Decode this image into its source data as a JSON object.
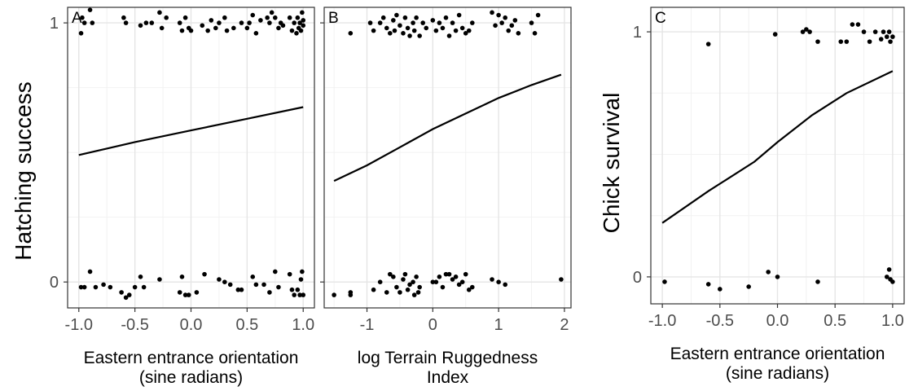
{
  "chart_data": [
    {
      "type": "scatter",
      "panel_label": "A",
      "xlabel": [
        "Eastern entrance orientation",
        "(sine radians)"
      ],
      "ylabel": "Hatching success",
      "xlim": [
        -1.1,
        1.1
      ],
      "ylim": [
        -0.1,
        1.06
      ],
      "x_ticks": [
        -1.0,
        -0.5,
        0.0,
        0.5,
        1.0
      ],
      "x_tick_labels": [
        "-1.0",
        "-0.5",
        "0.0",
        "0.5",
        "1.0"
      ],
      "y_ticks": [
        0,
        1
      ],
      "y_tick_labels": [
        "0",
        "1"
      ],
      "grid": true,
      "fit_line": {
        "x": [
          -1.0,
          -0.5,
          0.0,
          0.5,
          1.0
        ],
        "y": [
          0.49,
          0.54,
          0.585,
          0.63,
          0.675
        ]
      },
      "points": [
        {
          "x": -0.98,
          "y": 0.96
        },
        {
          "x": -0.97,
          "y": 1.02
        },
        {
          "x": -0.95,
          "y": 1.0
        },
        {
          "x": -0.9,
          "y": 1.05
        },
        {
          "x": -0.88,
          "y": 1.0
        },
        {
          "x": -0.6,
          "y": 1.02
        },
        {
          "x": -0.58,
          "y": 1.0
        },
        {
          "x": -0.45,
          "y": 0.99
        },
        {
          "x": -0.4,
          "y": 1.0
        },
        {
          "x": -0.35,
          "y": 1.0
        },
        {
          "x": -0.28,
          "y": 1.04
        },
        {
          "x": -0.26,
          "y": 0.98
        },
        {
          "x": -0.22,
          "y": 1.02
        },
        {
          "x": -0.1,
          "y": 1.0
        },
        {
          "x": -0.08,
          "y": 0.97
        },
        {
          "x": -0.05,
          "y": 1.02
        },
        {
          "x": -0.02,
          "y": 0.98
        },
        {
          "x": 0.0,
          "y": 0.97
        },
        {
          "x": 0.1,
          "y": 0.99
        },
        {
          "x": 0.15,
          "y": 0.97
        },
        {
          "x": 0.18,
          "y": 1.01
        },
        {
          "x": 0.22,
          "y": 0.98
        },
        {
          "x": 0.25,
          "y": 1.0
        },
        {
          "x": 0.3,
          "y": 1.02
        },
        {
          "x": 0.32,
          "y": 0.97
        },
        {
          "x": 0.38,
          "y": 0.98
        },
        {
          "x": 0.45,
          "y": 1.0
        },
        {
          "x": 0.5,
          "y": 0.98
        },
        {
          "x": 0.52,
          "y": 1.0
        },
        {
          "x": 0.55,
          "y": 1.03
        },
        {
          "x": 0.58,
          "y": 0.96
        },
        {
          "x": 0.62,
          "y": 1.01
        },
        {
          "x": 0.68,
          "y": 1.02
        },
        {
          "x": 0.7,
          "y": 1.0
        },
        {
          "x": 0.72,
          "y": 1.04
        },
        {
          "x": 0.75,
          "y": 1.02
        },
        {
          "x": 0.78,
          "y": 0.98
        },
        {
          "x": 0.8,
          "y": 1.0
        },
        {
          "x": 0.82,
          "y": 0.99
        },
        {
          "x": 0.88,
          "y": 1.02
        },
        {
          "x": 0.9,
          "y": 0.97
        },
        {
          "x": 0.92,
          "y": 1.0
        },
        {
          "x": 0.94,
          "y": 0.96
        },
        {
          "x": 0.95,
          "y": 1.02
        },
        {
          "x": 0.96,
          "y": 0.98
        },
        {
          "x": 0.97,
          "y": 1.0
        },
        {
          "x": 0.98,
          "y": 0.97
        },
        {
          "x": 0.99,
          "y": 1.04
        },
        {
          "x": 1.0,
          "y": 0.99
        },
        {
          "x": 1.0,
          "y": 1.01
        },
        {
          "x": -0.98,
          "y": -0.02
        },
        {
          "x": -0.95,
          "y": -0.02
        },
        {
          "x": -0.9,
          "y": 0.04
        },
        {
          "x": -0.85,
          "y": -0.02
        },
        {
          "x": -0.78,
          "y": -0.01
        },
        {
          "x": -0.72,
          "y": -0.02
        },
        {
          "x": -0.62,
          "y": -0.04
        },
        {
          "x": -0.58,
          "y": -0.06
        },
        {
          "x": -0.55,
          "y": -0.05
        },
        {
          "x": -0.5,
          "y": -0.02
        },
        {
          "x": -0.45,
          "y": 0.02
        },
        {
          "x": -0.42,
          "y": -0.02
        },
        {
          "x": -0.28,
          "y": 0.01
        },
        {
          "x": -0.1,
          "y": -0.04
        },
        {
          "x": -0.08,
          "y": 0.02
        },
        {
          "x": -0.05,
          "y": -0.05
        },
        {
          "x": -0.02,
          "y": -0.05
        },
        {
          "x": 0.05,
          "y": -0.04
        },
        {
          "x": 0.12,
          "y": 0.03
        },
        {
          "x": 0.25,
          "y": 0.01
        },
        {
          "x": 0.3,
          "y": 0.0
        },
        {
          "x": 0.35,
          "y": -0.01
        },
        {
          "x": 0.42,
          "y": -0.03
        },
        {
          "x": 0.45,
          "y": -0.03
        },
        {
          "x": 0.55,
          "y": 0.02
        },
        {
          "x": 0.58,
          "y": -0.01
        },
        {
          "x": 0.65,
          "y": -0.01
        },
        {
          "x": 0.7,
          "y": -0.04
        },
        {
          "x": 0.75,
          "y": 0.04
        },
        {
          "x": 0.78,
          "y": -0.02
        },
        {
          "x": 0.88,
          "y": 0.03
        },
        {
          "x": 0.9,
          "y": -0.03
        },
        {
          "x": 0.92,
          "y": -0.05
        },
        {
          "x": 0.95,
          "y": -0.03
        },
        {
          "x": 0.97,
          "y": -0.05
        },
        {
          "x": 0.98,
          "y": 0.01
        },
        {
          "x": 0.99,
          "y": 0.04
        },
        {
          "x": 1.0,
          "y": -0.05
        }
      ]
    },
    {
      "type": "scatter",
      "panel_label": "B",
      "xlabel": [
        "log Terrain Ruggedness",
        "Index"
      ],
      "ylabel": "",
      "xlim": [
        -1.65,
        2.1
      ],
      "ylim": [
        -0.1,
        1.06
      ],
      "x_ticks": [
        -1,
        0,
        1,
        2
      ],
      "x_tick_labels": [
        "-1",
        "0",
        "1",
        "2"
      ],
      "y_ticks": [
        0,
        1
      ],
      "grid": true,
      "fit_line": {
        "x": [
          -1.5,
          -1.0,
          -0.5,
          0.0,
          0.5,
          1.0,
          1.5,
          1.95
        ],
        "y": [
          0.39,
          0.45,
          0.52,
          0.59,
          0.65,
          0.71,
          0.76,
          0.8
        ]
      },
      "points": [
        {
          "x": -1.25,
          "y": 0.96
        },
        {
          "x": -0.95,
          "y": 1.0
        },
        {
          "x": -0.9,
          "y": 0.97
        },
        {
          "x": -0.8,
          "y": 1.0
        },
        {
          "x": -0.75,
          "y": 1.02
        },
        {
          "x": -0.7,
          "y": 0.98
        },
        {
          "x": -0.65,
          "y": 0.96
        },
        {
          "x": -0.6,
          "y": 1.01
        },
        {
          "x": -0.58,
          "y": 0.97
        },
        {
          "x": -0.55,
          "y": 1.03
        },
        {
          "x": -0.5,
          "y": 0.99
        },
        {
          "x": -0.45,
          "y": 0.96
        },
        {
          "x": -0.42,
          "y": 1.02
        },
        {
          "x": -0.38,
          "y": 0.98
        },
        {
          "x": -0.35,
          "y": 0.95
        },
        {
          "x": -0.3,
          "y": 1.0
        },
        {
          "x": -0.28,
          "y": 0.97
        },
        {
          "x": -0.25,
          "y": 1.02
        },
        {
          "x": -0.2,
          "y": 0.95
        },
        {
          "x": -0.15,
          "y": 1.0
        },
        {
          "x": -0.1,
          "y": 0.98
        },
        {
          "x": 0.0,
          "y": 1.01
        },
        {
          "x": 0.05,
          "y": 0.97
        },
        {
          "x": 0.1,
          "y": 1.0
        },
        {
          "x": 0.15,
          "y": 0.98
        },
        {
          "x": 0.2,
          "y": 1.02
        },
        {
          "x": 0.25,
          "y": 0.95
        },
        {
          "x": 0.3,
          "y": 1.0
        },
        {
          "x": 0.35,
          "y": 0.97
        },
        {
          "x": 0.4,
          "y": 1.03
        },
        {
          "x": 0.45,
          "y": 0.98
        },
        {
          "x": 0.5,
          "y": 0.96
        },
        {
          "x": 0.55,
          "y": 0.97
        },
        {
          "x": 0.6,
          "y": 1.0
        },
        {
          "x": 0.9,
          "y": 1.04
        },
        {
          "x": 0.95,
          "y": 0.99
        },
        {
          "x": 1.0,
          "y": 1.03
        },
        {
          "x": 1.05,
          "y": 1.0
        },
        {
          "x": 1.1,
          "y": 1.02
        },
        {
          "x": 1.15,
          "y": 0.97
        },
        {
          "x": 1.2,
          "y": 0.99
        },
        {
          "x": 1.25,
          "y": 1.01
        },
        {
          "x": 1.3,
          "y": 0.96
        },
        {
          "x": 1.5,
          "y": 1.0
        },
        {
          "x": 1.55,
          "y": 0.96
        },
        {
          "x": 1.6,
          "y": 1.03
        },
        {
          "x": -1.5,
          "y": -0.05
        },
        {
          "x": -1.25,
          "y": -0.05
        },
        {
          "x": -1.25,
          "y": -0.04
        },
        {
          "x": -0.9,
          "y": -0.03
        },
        {
          "x": -0.8,
          "y": 0.0
        },
        {
          "x": -0.7,
          "y": -0.04
        },
        {
          "x": -0.65,
          "y": 0.03
        },
        {
          "x": -0.6,
          "y": 0.02
        },
        {
          "x": -0.55,
          "y": -0.02
        },
        {
          "x": -0.5,
          "y": -0.04
        },
        {
          "x": -0.45,
          "y": 0.01
        },
        {
          "x": -0.42,
          "y": 0.03
        },
        {
          "x": -0.38,
          "y": -0.03
        },
        {
          "x": -0.35,
          "y": -0.01
        },
        {
          "x": -0.3,
          "y": 0.0
        },
        {
          "x": -0.28,
          "y": -0.05
        },
        {
          "x": -0.25,
          "y": 0.02
        },
        {
          "x": -0.22,
          "y": -0.04
        },
        {
          "x": -0.2,
          "y": -0.02
        },
        {
          "x": 0.0,
          "y": 0.0
        },
        {
          "x": 0.05,
          "y": 0.0
        },
        {
          "x": 0.1,
          "y": 0.02
        },
        {
          "x": 0.15,
          "y": -0.02
        },
        {
          "x": 0.2,
          "y": 0.03
        },
        {
          "x": 0.25,
          "y": 0.03
        },
        {
          "x": 0.3,
          "y": 0.01
        },
        {
          "x": 0.35,
          "y": 0.02
        },
        {
          "x": 0.4,
          "y": -0.01
        },
        {
          "x": 0.45,
          "y": 0.0
        },
        {
          "x": 0.5,
          "y": 0.03
        },
        {
          "x": 0.55,
          "y": -0.03
        },
        {
          "x": 0.6,
          "y": -0.02
        },
        {
          "x": 0.9,
          "y": 0.01
        },
        {
          "x": 1.0,
          "y": 0.0
        },
        {
          "x": 1.1,
          "y": -0.01
        },
        {
          "x": 1.95,
          "y": 0.01
        }
      ]
    },
    {
      "type": "scatter",
      "panel_label": "C",
      "xlabel": [
        "Eastern entrance orientation",
        "(sine radians)"
      ],
      "ylabel": "Chick survival",
      "xlim": [
        -1.1,
        1.1
      ],
      "ylim": [
        -0.11,
        1.1
      ],
      "x_ticks": [
        -1.0,
        -0.5,
        0.0,
        0.5,
        1.0
      ],
      "x_tick_labels": [
        "-1.0",
        "-0.5",
        "0.0",
        "0.5",
        "1.0"
      ],
      "y_ticks": [
        0,
        1
      ],
      "y_tick_labels": [
        "0",
        "1"
      ],
      "grid": true,
      "fit_line": {
        "x": [
          -1.0,
          -0.6,
          -0.2,
          0.0,
          0.3,
          0.6,
          1.0
        ],
        "y": [
          0.22,
          0.35,
          0.47,
          0.55,
          0.66,
          0.75,
          0.84
        ]
      },
      "points": [
        {
          "x": -0.6,
          "y": 0.95
        },
        {
          "x": -0.02,
          "y": 0.99
        },
        {
          "x": 0.22,
          "y": 1.0
        },
        {
          "x": 0.25,
          "y": 1.01
        },
        {
          "x": 0.28,
          "y": 1.0
        },
        {
          "x": 0.35,
          "y": 0.96
        },
        {
          "x": 0.55,
          "y": 0.96
        },
        {
          "x": 0.6,
          "y": 0.96
        },
        {
          "x": 0.65,
          "y": 1.03
        },
        {
          "x": 0.7,
          "y": 1.03
        },
        {
          "x": 0.75,
          "y": 1.0
        },
        {
          "x": 0.8,
          "y": 0.96
        },
        {
          "x": 0.85,
          "y": 1.0
        },
        {
          "x": 0.9,
          "y": 0.97
        },
        {
          "x": 0.92,
          "y": 1.0
        },
        {
          "x": 0.95,
          "y": 0.98
        },
        {
          "x": 0.97,
          "y": 1.0
        },
        {
          "x": 0.98,
          "y": 0.96
        },
        {
          "x": 1.0,
          "y": 0.98
        },
        {
          "x": -0.98,
          "y": -0.02
        },
        {
          "x": -0.6,
          "y": -0.03
        },
        {
          "x": -0.5,
          "y": -0.05
        },
        {
          "x": -0.25,
          "y": -0.04
        },
        {
          "x": -0.08,
          "y": 0.02
        },
        {
          "x": 0.0,
          "y": 0.0
        },
        {
          "x": 0.35,
          "y": -0.02
        },
        {
          "x": 0.95,
          "y": 0.0
        },
        {
          "x": 0.97,
          "y": 0.03
        },
        {
          "x": 0.98,
          "y": -0.01
        },
        {
          "x": 1.0,
          "y": -0.02
        }
      ]
    }
  ]
}
